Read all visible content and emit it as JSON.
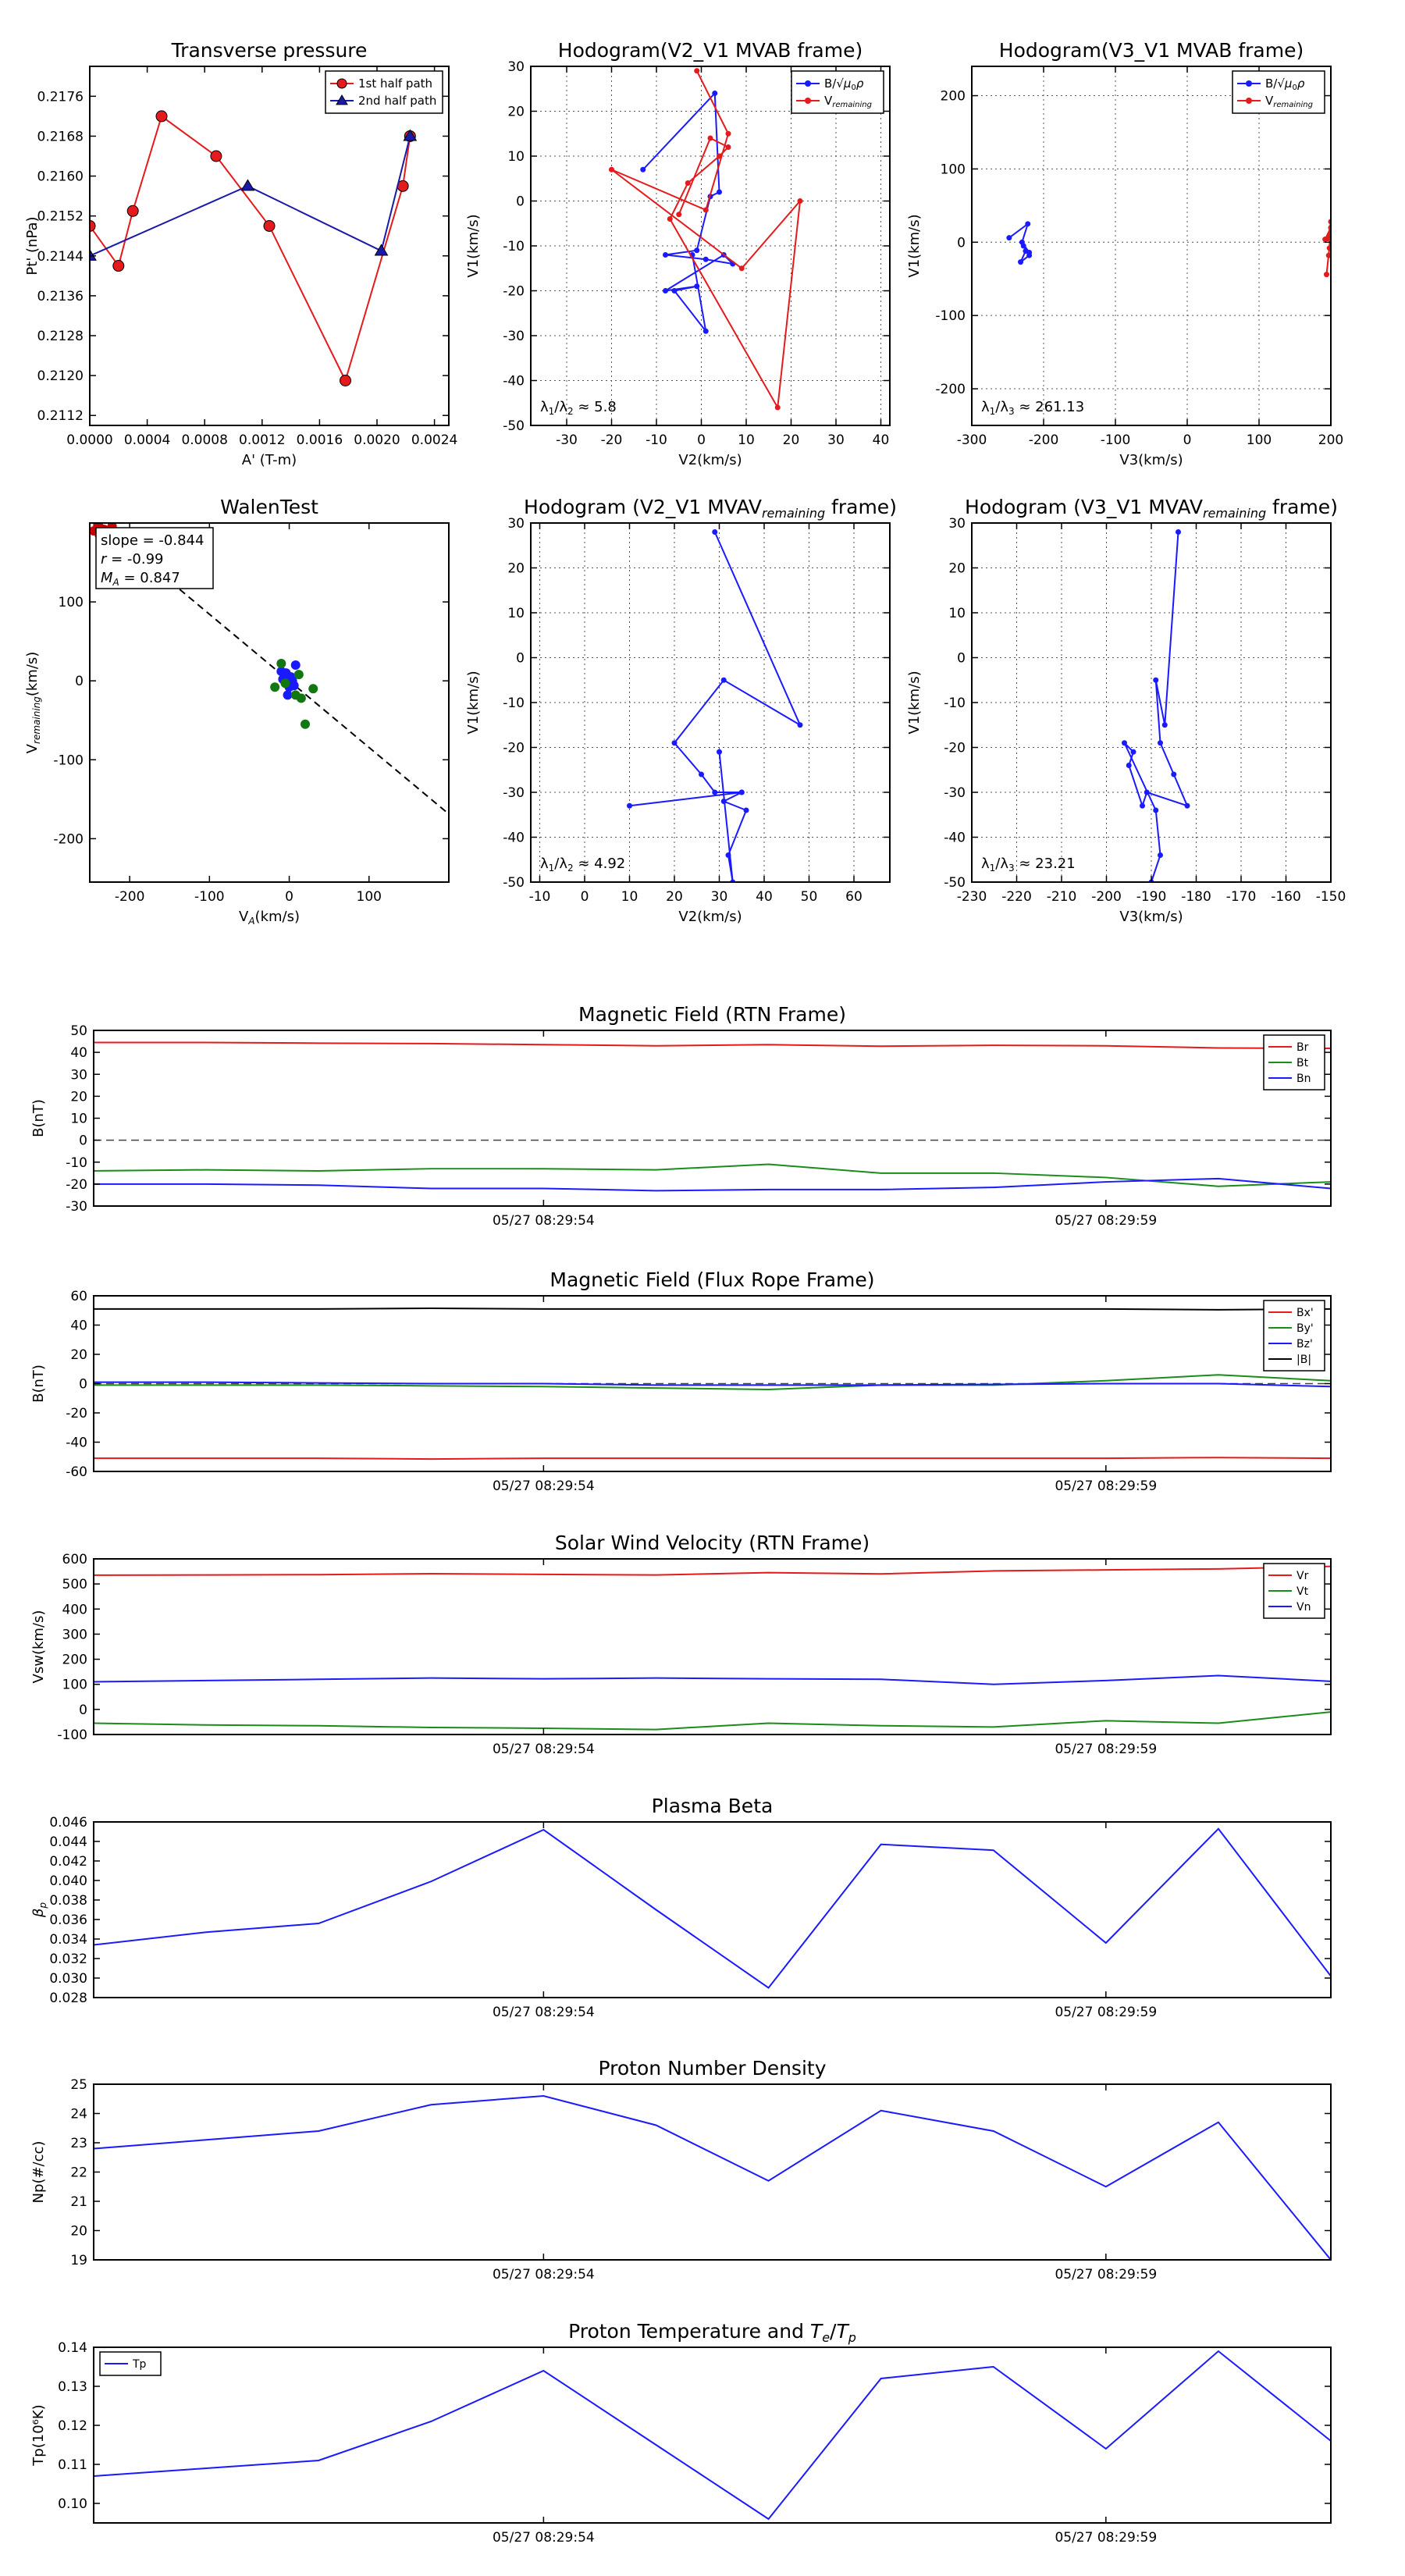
{
  "chart_data": [
    {
      "id": "p1",
      "type": "scatter",
      "title": "Transverse pressure",
      "xlabel": "A' (T-m)",
      "ylabel": "Pt' (nPa)",
      "xlim": [
        0,
        0.0025
      ],
      "ylim": [
        0.211,
        0.2182
      ],
      "xticks": [
        0,
        0.0004,
        0.0008,
        0.0012,
        0.0016,
        0.002,
        0.0024
      ],
      "xticklabels": [
        "0.0000",
        "0.0004",
        "0.0008",
        "0.0012",
        "0.0016",
        "0.0020",
        "0.0024"
      ],
      "yticks": [
        0.2112,
        0.212,
        0.2128,
        0.2136,
        0.2144,
        0.2152,
        0.216,
        0.2168,
        0.2176
      ],
      "yticklabels": [
        "0.2112",
        "0.2120",
        "0.2128",
        "0.2136",
        "0.2144",
        "0.2152",
        "0.2160",
        "0.2168",
        "0.2176"
      ],
      "grid": false,
      "legend": "top-right",
      "series": [
        {
          "name": "1st half path",
          "color": "#e41a1c",
          "marker": "circle",
          "x": [
            0.0,
            0.0002,
            0.0003,
            0.0005,
            0.00088,
            0.00125,
            0.00178,
            0.00218,
            0.00223
          ],
          "y": [
            0.215,
            0.2142,
            0.2153,
            0.2172,
            0.2164,
            0.215,
            0.2119,
            0.2158,
            0.2168
          ]
        },
        {
          "name": "2nd half path",
          "color": "#1a1aa8",
          "marker": "triangle",
          "x": [
            0.0,
            0.0011,
            0.00203,
            0.00223
          ],
          "y": [
            0.2144,
            0.2158,
            0.2145,
            0.2168
          ]
        }
      ]
    },
    {
      "id": "p2",
      "type": "line",
      "title": "Hodogram(V2_V1 MVAB frame)",
      "xlabel": "V2(km/s)",
      "ylabel": "V1(km/s)",
      "xlim": [
        -38,
        42
      ],
      "ylim": [
        -50,
        30
      ],
      "xticks": [
        -30,
        -20,
        -10,
        0,
        10,
        20,
        30,
        40
      ],
      "yticks": [
        -50,
        -40,
        -30,
        -20,
        -10,
        0,
        10,
        20,
        30
      ],
      "grid": true,
      "legend": "top-right",
      "annotation": "λ1/λ2 ≈ 5.8",
      "series": [
        {
          "name": "B/√μ0ρ",
          "color": "#1a1aff",
          "x": [
            -13,
            3,
            4,
            2,
            -1,
            -8,
            1,
            7,
            5,
            -8,
            -1,
            -6,
            1,
            -2
          ],
          "y": [
            7,
            24,
            2,
            1,
            -11,
            -12,
            -13,
            -14,
            -12,
            -20,
            -19,
            -20,
            -29,
            -12
          ]
        },
        {
          "name": "Vremaining",
          "color": "#e41a1c",
          "x": [
            -1,
            6,
            1,
            -20,
            9,
            22,
            17,
            -7,
            -3,
            4,
            6,
            2,
            -5
          ],
          "y": [
            29,
            15,
            -2,
            7,
            -15,
            0,
            -46,
            -4,
            4,
            10,
            12,
            14,
            -3
          ]
        }
      ]
    },
    {
      "id": "p3",
      "type": "line",
      "title": "Hodogram(V3_V1 MVAB frame)",
      "xlabel": "V3(km/s)",
      "ylabel": "V1(km/s)",
      "xlim": [
        -300,
        200
      ],
      "ylim": [
        -250,
        240
      ],
      "xticks": [
        -300,
        -200,
        -100,
        0,
        100,
        200
      ],
      "yticks": [
        -200,
        -100,
        0,
        100,
        200
      ],
      "grid": true,
      "legend": "top-right",
      "annotation": "λ1/λ3 ≈ 261.13",
      "series": [
        {
          "name": "B/√μ0ρ",
          "color": "#1a1aff",
          "x": [
            -248,
            -222,
            -230,
            -220,
            -225,
            -232,
            -220,
            -228
          ],
          "y": [
            6,
            25,
            0,
            -14,
            -12,
            -27,
            -18,
            -5
          ]
        },
        {
          "name": "Vremaining",
          "color": "#e41a1c",
          "x": [
            196,
            200,
            198,
            194,
            200,
            197,
            200,
            192
          ],
          "y": [
            5,
            28,
            -8,
            -44,
            12,
            -18,
            20,
            4
          ]
        }
      ]
    },
    {
      "id": "p4",
      "type": "scatter",
      "title": "WalenTest",
      "xlabel": "VA(km/s)",
      "ylabel": "Vremaining(km/s)",
      "xlim": [
        -250,
        200
      ],
      "ylim": [
        -255,
        200
      ],
      "xticks": [
        -200,
        -100,
        0,
        100
      ],
      "yticks": [
        -200,
        -100,
        0,
        100
      ],
      "grid": false,
      "textbox": [
        "slope = -0.844",
        "r = -0.99",
        "MA = 0.847"
      ],
      "fit": {
        "slope": -0.844,
        "intercept": 0
      },
      "series": [
        {
          "name": "red",
          "color": "#cc0000",
          "x": [
            -245,
            -240,
            -232,
            -228,
            -222,
            -238
          ],
          "y": [
            190,
            197,
            192,
            188,
            196,
            185
          ]
        },
        {
          "name": "blue",
          "color": "#1a1aff",
          "x": [
            -8,
            -4,
            0,
            2,
            4,
            6,
            -2,
            -10,
            -5,
            8,
            3
          ],
          "y": [
            2,
            10,
            -8,
            5,
            0,
            -6,
            -18,
            12,
            -2,
            20,
            4
          ]
        },
        {
          "name": "green",
          "color": "#117711",
          "x": [
            -18,
            -10,
            8,
            15,
            20,
            30,
            -5,
            12
          ],
          "y": [
            -8,
            22,
            -18,
            -22,
            -55,
            -10,
            -3,
            8
          ]
        }
      ]
    },
    {
      "id": "p5",
      "type": "line",
      "title": "Hodogram (V2_V1 MVAVremaining frame)",
      "xlabel": "V2(km/s)",
      "ylabel": "V1(km/s)",
      "xlim": [
        -12,
        68
      ],
      "ylim": [
        -50,
        30
      ],
      "xticks": [
        -10,
        0,
        10,
        20,
        30,
        40,
        50,
        60
      ],
      "yticks": [
        -50,
        -40,
        -30,
        -20,
        -10,
        0,
        10,
        20,
        30
      ],
      "grid": true,
      "annotation": "λ1/λ2 ≈ 4.92",
      "series": [
        {
          "name": "path",
          "color": "#1a1aff",
          "x": [
            29,
            48,
            31,
            20,
            26,
            29,
            35,
            10,
            35,
            31,
            36,
            32,
            33,
            30
          ],
          "y": [
            28,
            -15,
            -5,
            -19,
            -26,
            -30,
            -30,
            -33,
            -30,
            -32,
            -34,
            -44,
            -50,
            -21
          ]
        }
      ]
    },
    {
      "id": "p6",
      "type": "line",
      "title": "Hodogram (V3_V1 MVAVremaining frame)",
      "xlabel": "V3(km/s)",
      "ylabel": "V1(km/s)",
      "xlim": [
        -230,
        -150
      ],
      "ylim": [
        -50,
        30
      ],
      "xticks": [
        -230,
        -220,
        -210,
        -200,
        -190,
        -180,
        -170,
        -160,
        -150
      ],
      "yticks": [
        -50,
        -40,
        -30,
        -20,
        -10,
        0,
        10,
        20,
        30
      ],
      "grid": true,
      "annotation": "λ1/λ3 ≈ 23.21",
      "series": [
        {
          "name": "path",
          "color": "#1a1aff",
          "x": [
            -184,
            -187,
            -189,
            -188,
            -185,
            -182,
            -191,
            -192,
            -195,
            -194,
            -196,
            -189,
            -188,
            -190
          ],
          "y": [
            28,
            -15,
            -5,
            -19,
            -26,
            -33,
            -30,
            -33,
            -24,
            -21,
            -19,
            -34,
            -44,
            -50
          ]
        }
      ]
    },
    {
      "id": "t1",
      "type": "line",
      "title": "Magnetic Field (RTN Frame)",
      "ylabel": "B(nT)",
      "xlim": [
        0,
        11
      ],
      "ylim": [
        -30,
        50
      ],
      "yticks": [
        -30,
        -20,
        -10,
        0,
        10,
        20,
        30,
        40,
        50
      ],
      "xticks": [
        4,
        9
      ],
      "xticklabels": [
        "05/27 08:29:54",
        "05/27 08:29:59"
      ],
      "grid": false,
      "legend": "top-right",
      "hline": 0,
      "x": [
        0,
        1,
        2,
        3,
        4,
        5,
        6,
        7,
        8,
        9,
        10,
        11
      ],
      "series": [
        {
          "name": "Br",
          "color": "#e41a1c",
          "values": [
            44.5,
            44.5,
            44.2,
            44,
            43.5,
            43.0,
            43.5,
            42.8,
            43.2,
            43.0,
            42.0,
            41.8
          ]
        },
        {
          "name": "Bt",
          "color": "#1a8c1a",
          "values": [
            -14,
            -13.5,
            -14,
            -13,
            -13,
            -13.5,
            -11,
            -15,
            -15,
            -17,
            -21,
            -19
          ]
        },
        {
          "name": "Bn",
          "color": "#1a1aff",
          "values": [
            -20,
            -20,
            -20.5,
            -22,
            -22,
            -23,
            -22.5,
            -22.5,
            -21.5,
            -19,
            -17.5,
            -22
          ]
        }
      ]
    },
    {
      "id": "t2",
      "type": "line",
      "title": "Magnetic Field (Flux Rope Frame)",
      "ylabel": "B(nT)",
      "xlim": [
        0,
        11
      ],
      "ylim": [
        -60,
        60
      ],
      "yticks": [
        -60,
        -40,
        -20,
        0,
        20,
        40,
        60
      ],
      "xticks": [
        4,
        9
      ],
      "xticklabels": [
        "05/27 08:29:54",
        "05/27 08:29:59"
      ],
      "grid": false,
      "legend": "top-right",
      "hline": 0,
      "x": [
        0,
        1,
        2,
        3,
        4,
        5,
        6,
        7,
        8,
        9,
        10,
        11
      ],
      "series": [
        {
          "name": "Bx'",
          "color": "#e41a1c",
          "values": [
            -51,
            -51,
            -51,
            -51.5,
            -51,
            -51,
            -51,
            -51,
            -51,
            -51,
            -50.5,
            -51
          ]
        },
        {
          "name": "By'",
          "color": "#1a8c1a",
          "values": [
            -1,
            -1,
            -1,
            -1.5,
            -2,
            -3,
            -4,
            -1,
            -1,
            2,
            6,
            2
          ]
        },
        {
          "name": "Bz'",
          "color": "#1a1aff",
          "values": [
            1,
            1,
            0.5,
            0,
            0,
            -1,
            -1,
            -1,
            -0.5,
            0,
            0,
            -2
          ]
        },
        {
          "name": "|B|",
          "color": "#000000",
          "values": [
            51,
            51,
            51,
            51.5,
            51,
            51,
            51,
            51,
            51,
            51,
            50.5,
            51
          ]
        }
      ]
    },
    {
      "id": "t3",
      "type": "line",
      "title": "Solar Wind Velocity (RTN Frame)",
      "ylabel": "Vsw(km/s)",
      "xlim": [
        0,
        11
      ],
      "ylim": [
        -100,
        600
      ],
      "yticks": [
        -100,
        0,
        100,
        200,
        300,
        400,
        500,
        600
      ],
      "xticks": [
        4,
        9
      ],
      "xticklabels": [
        "05/27 08:29:54",
        "05/27 08:29:59"
      ],
      "grid": false,
      "legend": "top-right",
      "x": [
        0,
        1,
        2,
        3,
        4,
        5,
        6,
        7,
        8,
        9,
        10,
        11
      ],
      "series": [
        {
          "name": "Vr",
          "color": "#e41a1c",
          "values": [
            535,
            536,
            537,
            541,
            538,
            536,
            545,
            540,
            552,
            556,
            560,
            570
          ]
        },
        {
          "name": "Vt",
          "color": "#1a8c1a",
          "values": [
            -55,
            -62,
            -65,
            -72,
            -75,
            -80,
            -55,
            -65,
            -70,
            -45,
            -55,
            -10
          ]
        },
        {
          "name": "Vn",
          "color": "#1a1aff",
          "values": [
            110,
            115,
            120,
            125,
            122,
            125,
            122,
            120,
            100,
            115,
            135,
            112
          ]
        }
      ]
    },
    {
      "id": "t4",
      "type": "line",
      "title": "Plasma Beta",
      "ylabel": "βp",
      "xlim": [
        0,
        11
      ],
      "ylim": [
        0.028,
        0.046
      ],
      "yticks": [
        0.028,
        0.03,
        0.032,
        0.034,
        0.036,
        0.038,
        0.04,
        0.042,
        0.044,
        0.046
      ],
      "yticklabels": [
        "0.028",
        "0.030",
        "0.032",
        "0.034",
        "0.036",
        "0.038",
        "0.040",
        "0.042",
        "0.044",
        "0.046"
      ],
      "xticks": [
        4,
        9
      ],
      "xticklabels": [
        "05/27 08:29:54",
        "05/27 08:29:59"
      ],
      "grid": false,
      "x": [
        0,
        1,
        2,
        3,
        4,
        5,
        6,
        7,
        8,
        9,
        10,
        11
      ],
      "series": [
        {
          "name": "beta",
          "color": "#1a1aff",
          "values": [
            0.0334,
            0.0347,
            0.0356,
            0.0399,
            0.0452,
            0.037,
            0.029,
            0.0437,
            0.0431,
            0.0336,
            0.0453,
            0.0302
          ]
        }
      ]
    },
    {
      "id": "t5",
      "type": "line",
      "title": "Proton Number Density",
      "ylabel": "Np(#/cc)",
      "xlim": [
        0,
        11
      ],
      "ylim": [
        19,
        25
      ],
      "yticks": [
        19,
        20,
        21,
        22,
        23,
        24,
        25
      ],
      "xticks": [
        4,
        9
      ],
      "xticklabels": [
        "05/27 08:29:54",
        "05/27 08:29:59"
      ],
      "grid": false,
      "x": [
        0,
        1,
        2,
        3,
        4,
        5,
        6,
        7,
        8,
        9,
        10,
        11
      ],
      "series": [
        {
          "name": "Np",
          "color": "#1a1aff",
          "values": [
            22.8,
            23.1,
            23.4,
            24.3,
            24.6,
            23.6,
            21.7,
            24.1,
            23.4,
            21.5,
            23.7,
            19.0
          ]
        }
      ]
    },
    {
      "id": "t6",
      "type": "line",
      "title": "Proton Temperature and Te/Tp",
      "ylabel": "Tp(10⁶K)",
      "xlim": [
        0,
        11
      ],
      "ylim": [
        0.095,
        0.14
      ],
      "yticks": [
        0.1,
        0.11,
        0.12,
        0.13,
        0.14
      ],
      "yticklabels": [
        "0.10",
        "0.11",
        "0.12",
        "0.13",
        "0.14"
      ],
      "xticks": [
        4,
        9
      ],
      "xticklabels": [
        "05/27 08:29:54",
        "05/27 08:29:59"
      ],
      "grid": false,
      "legend": "top-left",
      "x": [
        0,
        1,
        2,
        3,
        4,
        5,
        6,
        7,
        8,
        9,
        10,
        11
      ],
      "series": [
        {
          "name": "Tp",
          "color": "#1a1aff",
          "values": [
            0.107,
            0.109,
            0.111,
            0.121,
            0.134,
            0.115,
            0.096,
            0.132,
            0.135,
            0.114,
            0.139,
            0.116
          ]
        }
      ]
    }
  ]
}
